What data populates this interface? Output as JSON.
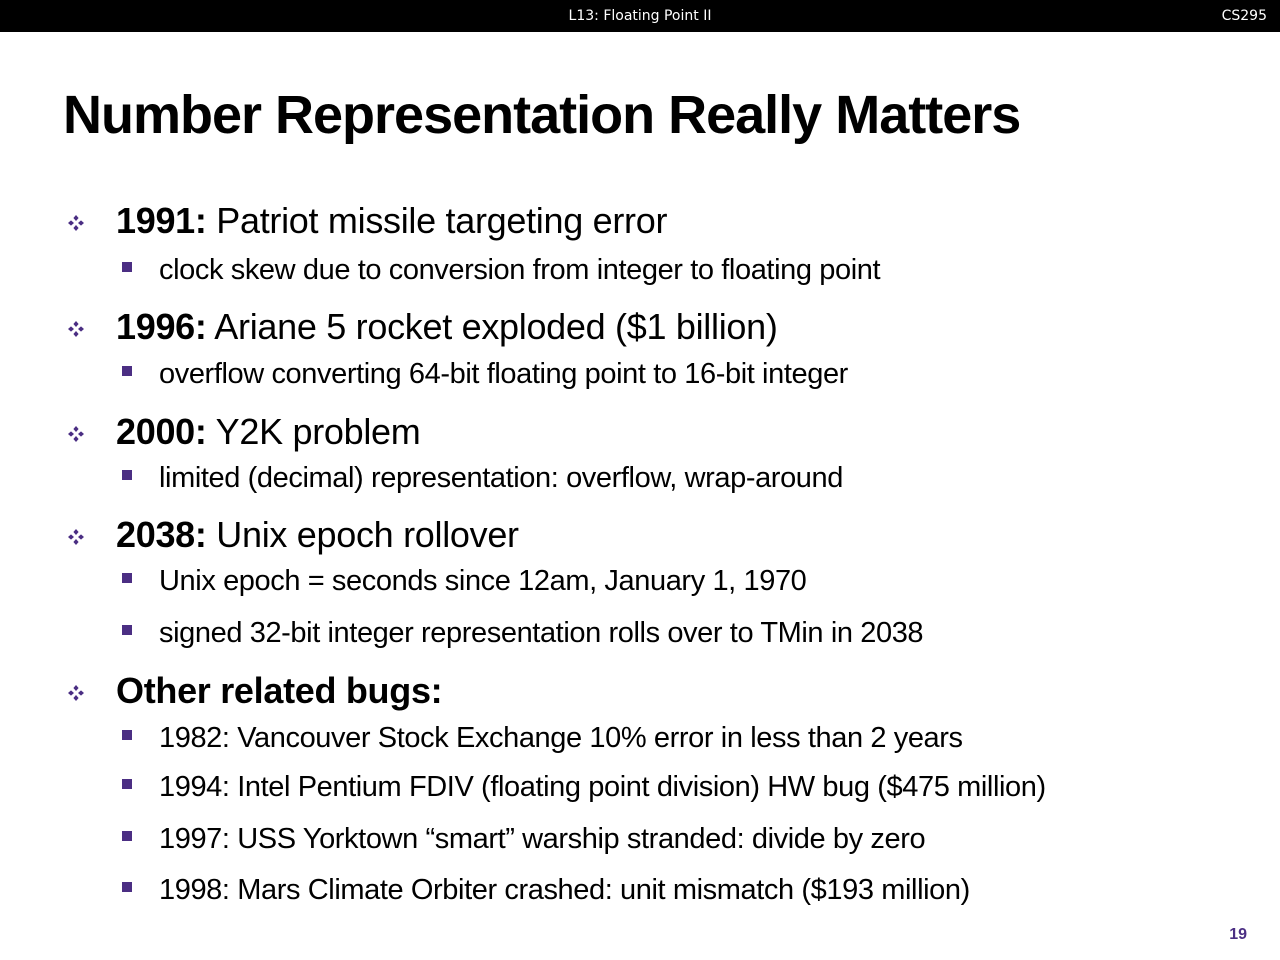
{
  "header": {
    "lecture": "L13:  Floating Point II",
    "course": "CS295"
  },
  "slide": {
    "title": "Number Representation Really Matters",
    "page_number": "19",
    "bullets": [
      {
        "year": "1991:",
        "text": " Patriot missile targeting error",
        "subs": [
          "clock skew due to conversion from integer to floating point"
        ]
      },
      {
        "year": "1996:",
        "text": " Ariane 5 rocket exploded  ($1 billion)",
        "subs": [
          "overflow converting 64-bit floating point to 16-bit integer"
        ]
      },
      {
        "year": "2000:",
        "text": " Y2K problem",
        "subs": [
          "limited (decimal) representation: overflow, wrap-around"
        ]
      },
      {
        "year": "2038:",
        "text": " Unix epoch rollover",
        "subs": [
          "Unix epoch = seconds since 12am, January 1, 1970",
          "signed 32-bit integer representation rolls over to TMin in 2038"
        ]
      },
      {
        "year": "Other related bugs:",
        "text": "",
        "subs": [
          "1982: Vancouver Stock Exchange 10% error in less than 2 years",
          "1994: Intel Pentium FDIV (floating point division) HW bug ($475 million)",
          "1997: USS Yorktown “smart” warship stranded: divide by zero",
          "1998: Mars Climate Orbiter crashed: unit mismatch ($193 million)"
        ]
      }
    ]
  },
  "colors": {
    "accent": "#4b2e83",
    "header_bg": "#000000"
  }
}
